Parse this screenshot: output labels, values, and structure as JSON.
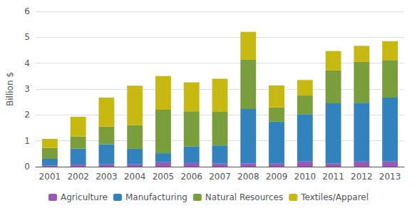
{
  "chart_data": {
    "type": "bar",
    "stacked": true,
    "categories": [
      "2001",
      "2002",
      "2003",
      "2004",
      "2005",
      "2006",
      "2007",
      "2008",
      "2009",
      "2010",
      "2011",
      "2012",
      "2013"
    ],
    "series": [
      {
        "name": "Agriculture",
        "color": "#9B59B6",
        "values": [
          0.05,
          0.08,
          0.09,
          0.09,
          0.17,
          0.14,
          0.12,
          0.13,
          0.12,
          0.2,
          0.13,
          0.2,
          0.2
        ]
      },
      {
        "name": "Manufacturing",
        "color": "#3182BD",
        "values": [
          0.25,
          0.62,
          0.78,
          0.6,
          0.35,
          0.65,
          0.7,
          2.1,
          1.62,
          1.83,
          2.32,
          2.27,
          2.47
        ]
      },
      {
        "name": "Natural Resources",
        "color": "#7B9E3C",
        "values": [
          0.42,
          0.47,
          0.68,
          0.92,
          1.68,
          1.35,
          1.3,
          1.9,
          0.55,
          0.72,
          1.27,
          1.58,
          1.45
        ]
      },
      {
        "name": "Textiles/Apparel",
        "color": "#C8B912",
        "values": [
          0.35,
          0.76,
          1.12,
          1.52,
          1.3,
          1.12,
          1.28,
          1.08,
          0.85,
          0.6,
          0.75,
          0.62,
          0.73
        ]
      }
    ],
    "ylabel": "Billion $",
    "ylim": [
      0,
      6
    ],
    "yticks": [
      0,
      1,
      2,
      3,
      4,
      5,
      6
    ],
    "grid": true,
    "legend": "bottom"
  }
}
